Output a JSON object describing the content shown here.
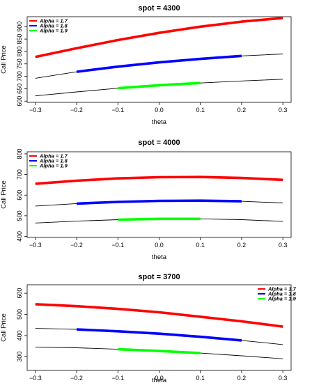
{
  "chart_data": [
    {
      "type": "line",
      "title": "spot = 4300",
      "xlabel": "theta",
      "ylabel": "Call Price",
      "xlim": [
        -0.32,
        0.32
      ],
      "ylim": [
        595,
        940
      ],
      "xticks": [
        -0.3,
        -0.2,
        -0.1,
        0.0,
        0.1,
        0.2,
        0.3
      ],
      "xtick_labels": [
        "−0.3",
        "−0.2",
        "−0.1",
        "0.0",
        "0.1",
        "0.2",
        "0.3"
      ],
      "yticks": [
        600,
        650,
        700,
        750,
        800,
        850,
        900
      ],
      "ytick_labels": [
        "600",
        "650",
        "700",
        "750",
        "800",
        "850",
        "900"
      ],
      "legend": {
        "position": "top-left",
        "entries": [
          {
            "label": "Alpha = 1.7",
            "color": "#ff0000"
          },
          {
            "label": "Alpha = 1.8",
            "color": "#0000ff"
          },
          {
            "label": "Alpha = 1.9",
            "color": "#00ff00"
          }
        ]
      },
      "series": [
        {
          "color": "#000000",
          "style": "thin",
          "x": [
            -0.3,
            -0.2,
            -0.1,
            0.0,
            0.1,
            0.2,
            0.3
          ],
          "y": [
            778,
            813,
            846,
            875,
            900,
            920,
            935
          ]
        },
        {
          "color": "#000000",
          "style": "thin",
          "x": [
            -0.3,
            -0.2,
            -0.1,
            0.0,
            0.1,
            0.2,
            0.3
          ],
          "y": [
            692,
            718,
            739,
            756,
            770,
            782,
            790
          ]
        },
        {
          "color": "#000000",
          "style": "thin",
          "x": [
            -0.3,
            -0.2,
            -0.1,
            0.0,
            0.1,
            0.2,
            0.3
          ],
          "y": [
            621,
            637,
            652,
            664,
            673,
            681,
            688
          ]
        },
        {
          "color": "#ff0000",
          "style": "thick",
          "x": [
            -0.3,
            -0.2,
            -0.1,
            0.0,
            0.1,
            0.2,
            0.3
          ],
          "y": [
            778,
            813,
            846,
            875,
            900,
            920,
            935
          ]
        },
        {
          "color": "#0000ff",
          "style": "thick",
          "x": [
            -0.2,
            -0.1,
            0.0,
            0.1,
            0.2
          ],
          "y": [
            718,
            739,
            756,
            770,
            782
          ]
        },
        {
          "color": "#00ff00",
          "style": "thick",
          "x": [
            -0.1,
            0.0,
            0.1
          ],
          "y": [
            652,
            664,
            673
          ]
        }
      ]
    },
    {
      "type": "line",
      "title": "spot = 4000",
      "xlabel": "theta",
      "ylabel": "Call Price",
      "xlim": [
        -0.32,
        0.32
      ],
      "ylim": [
        395,
        810
      ],
      "xticks": [
        -0.3,
        -0.2,
        -0.1,
        0.0,
        0.1,
        0.2,
        0.3
      ],
      "xtick_labels": [
        "−0.3",
        "−0.2",
        "−0.1",
        "0.0",
        "0.1",
        "0.2",
        "0.3"
      ],
      "yticks": [
        400,
        500,
        600,
        700,
        800
      ],
      "ytick_labels": [
        "400",
        "500",
        "600",
        "700",
        "800"
      ],
      "legend": {
        "position": "top-left",
        "entries": [
          {
            "label": "Alpha = 1.7",
            "color": "#ff0000"
          },
          {
            "label": "Alpha = 1.8",
            "color": "#0000ff"
          },
          {
            "label": "Alpha = 1.9",
            "color": "#00ff00"
          }
        ]
      },
      "series": [
        {
          "color": "#000000",
          "style": "thin",
          "x": [
            -0.3,
            -0.2,
            -0.1,
            0.0,
            0.1,
            0.2,
            0.3
          ],
          "y": [
            655,
            670,
            681,
            687,
            688,
            683,
            674
          ]
        },
        {
          "color": "#000000",
          "style": "thin",
          "x": [
            -0.3,
            -0.2,
            -0.1,
            0.0,
            0.1,
            0.2,
            0.3
          ],
          "y": [
            547,
            559,
            567,
            572,
            573,
            570,
            562
          ]
        },
        {
          "color": "#000000",
          "style": "thin",
          "x": [
            -0.3,
            -0.2,
            -0.1,
            0.0,
            0.1,
            0.2,
            0.3
          ],
          "y": [
            465,
            474,
            481,
            485,
            485,
            481,
            473
          ]
        },
        {
          "color": "#ff0000",
          "style": "thick",
          "x": [
            -0.3,
            -0.2,
            -0.1,
            0.0,
            0.1,
            0.2,
            0.3
          ],
          "y": [
            655,
            670,
            681,
            687,
            688,
            683,
            674
          ]
        },
        {
          "color": "#0000ff",
          "style": "thick",
          "x": [
            -0.2,
            -0.1,
            0.0,
            0.1,
            0.2
          ],
          "y": [
            559,
            567,
            572,
            573,
            570
          ]
        },
        {
          "color": "#00ff00",
          "style": "thick",
          "x": [
            -0.1,
            0.0,
            0.1
          ],
          "y": [
            481,
            485,
            485
          ]
        }
      ]
    },
    {
      "type": "line",
      "title": "spot = 3700",
      "xlabel": "theta",
      "ylabel": "Call Price",
      "xlim": [
        -0.32,
        0.32
      ],
      "ylim": [
        235,
        640
      ],
      "xticks": [
        -0.3,
        -0.2,
        -0.1,
        0.0,
        0.1,
        0.2,
        0.3
      ],
      "xtick_labels": [
        "−0.3",
        "−0.2",
        "−0.1",
        "0.0",
        "0.1",
        "0.2",
        "0.3"
      ],
      "yticks": [
        300,
        400,
        500,
        600
      ],
      "ytick_labels": [
        "300",
        "400",
        "500",
        "600"
      ],
      "legend": {
        "position": "top-right",
        "entries": [
          {
            "label": "Alpha = 1.7",
            "color": "#ff0000"
          },
          {
            "label": "Alpha = 1.8",
            "color": "#0000ff"
          },
          {
            "label": "Alpha = 1.9",
            "color": "#00ff00"
          }
        ]
      },
      "series": [
        {
          "color": "#000000",
          "style": "thin",
          "x": [
            -0.3,
            -0.2,
            -0.1,
            0.0,
            0.1,
            0.2,
            0.3
          ],
          "y": [
            548,
            539,
            526,
            510,
            489,
            467,
            442
          ]
        },
        {
          "color": "#000000",
          "style": "thin",
          "x": [
            -0.3,
            -0.2,
            -0.1,
            0.0,
            0.1,
            0.2,
            0.3
          ],
          "y": [
            434,
            429,
            420,
            409,
            394,
            377,
            357
          ]
        },
        {
          "color": "#000000",
          "style": "thin",
          "x": [
            -0.3,
            -0.2,
            -0.1,
            0.0,
            0.1,
            0.2,
            0.3
          ],
          "y": [
            345,
            342,
            335,
            327,
            317,
            304,
            290
          ]
        },
        {
          "color": "#ff0000",
          "style": "thick",
          "x": [
            -0.3,
            -0.2,
            -0.1,
            0.0,
            0.1,
            0.2,
            0.3
          ],
          "y": [
            548,
            539,
            526,
            510,
            489,
            467,
            442
          ]
        },
        {
          "color": "#0000ff",
          "style": "thick",
          "x": [
            -0.2,
            -0.1,
            0.0,
            0.1,
            0.2
          ],
          "y": [
            429,
            420,
            409,
            394,
            377
          ]
        },
        {
          "color": "#00ff00",
          "style": "thick",
          "x": [
            -0.1,
            0.0,
            0.1
          ],
          "y": [
            335,
            327,
            317
          ]
        }
      ]
    }
  ]
}
